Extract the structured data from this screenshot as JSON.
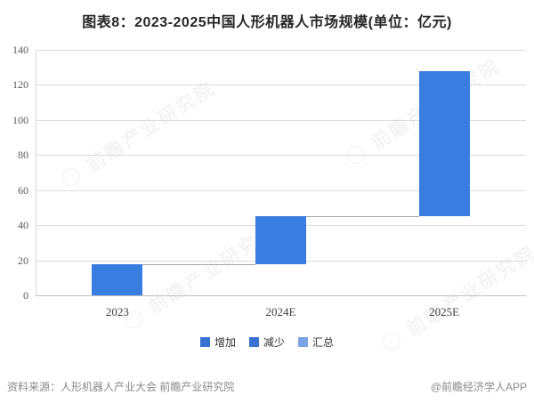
{
  "title": "图表8：2023-2025中国人形机器人市场规模(单位：亿元)",
  "watermark": {
    "text": "◯ 前瞻产业研究院"
  },
  "legend": [
    {
      "label": "增加",
      "color": "#3a72d4"
    },
    {
      "label": "减少",
      "color": "#3a72d4"
    },
    {
      "label": "汇总",
      "color": "#7aa4e6"
    }
  ],
  "footer": {
    "source": "资料来源：人形机器人产业大会 前瞻产业研究院",
    "credit": "@前瞻经济学人APP"
  },
  "chart_data": {
    "type": "bar",
    "subtype": "waterfall",
    "title": "图表8：2023-2025中国人形机器人市场规模(单位：亿元)",
    "unit": "亿元",
    "categories": [
      "2023",
      "2024E",
      "2025E"
    ],
    "segments": [
      {
        "category": "2023",
        "start": 0,
        "end": 17.7,
        "increment": 17.7
      },
      {
        "category": "2024E",
        "start": 17.7,
        "end": 45.3,
        "increment": 27.6
      },
      {
        "category": "2025E",
        "start": 45.3,
        "end": 127.7,
        "increment": 82.4
      }
    ],
    "yticks": [
      0,
      20,
      40,
      60,
      80,
      100,
      120,
      140
    ],
    "ylim": [
      0,
      140
    ],
    "xlabel": "",
    "ylabel": "",
    "grid": true,
    "legend_position": "bottom",
    "bar_color": "#3a7de0",
    "connector_color": "#a6a6a6"
  }
}
